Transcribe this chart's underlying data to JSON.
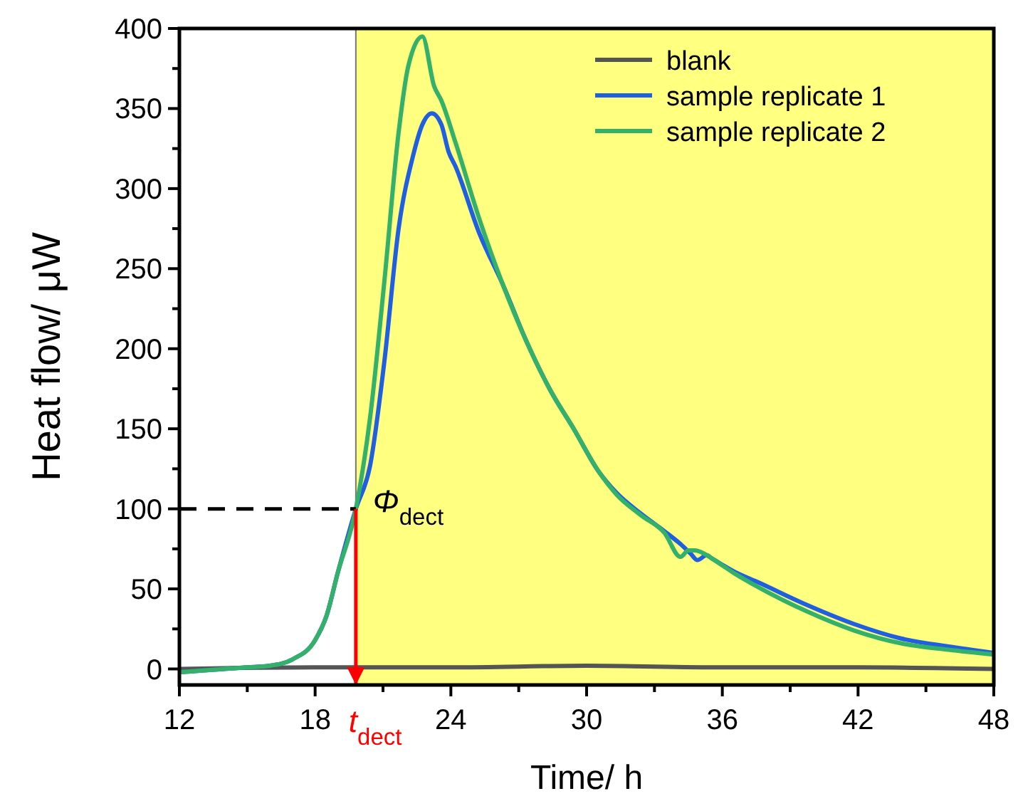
{
  "chart_data": {
    "type": "line",
    "xlabel": "Time/ h",
    "ylabel": "Heat flow/ μW",
    "xlim": [
      12,
      48
    ],
    "ylim": [
      -10,
      400
    ],
    "xticks": [
      12,
      {
        "value": 15,
        "label": null
      },
      18,
      {
        "value": 21,
        "label": null
      },
      24,
      {
        "value": 27,
        "label": null
      },
      30,
      {
        "value": 33,
        "label": null
      },
      36,
      {
        "value": 39,
        "label": null
      },
      42,
      {
        "value": 45,
        "label": null
      },
      48
    ],
    "yticks": [
      0,
      {
        "value": 25,
        "label": null
      },
      50,
      {
        "value": 75,
        "label": null
      },
      100,
      {
        "value": 125,
        "label": null
      },
      150,
      {
        "value": 175,
        "label": null
      },
      200,
      {
        "value": 225,
        "label": null
      },
      250,
      {
        "value": 275,
        "label": null
      },
      300,
      {
        "value": 325,
        "label": null
      },
      350,
      {
        "value": 375,
        "label": null
      },
      400
    ],
    "series": [
      {
        "name": "blank",
        "color": "#555555",
        "x": [
          12,
          18,
          24,
          30,
          36,
          42,
          48
        ],
        "values": [
          0,
          1,
          1,
          2,
          1,
          1,
          0
        ]
      },
      {
        "name": "sample replicate 1",
        "color": "#1f5fe0",
        "x": [
          12,
          13,
          14,
          15,
          16,
          17,
          18,
          18.5,
          19,
          19.8,
          20.43,
          21.06,
          21.69,
          22.32,
          22.74,
          23.16,
          23.58,
          23.9,
          24.2,
          25.26,
          26.3,
          27.36,
          28.4,
          29.43,
          30.5,
          31.32,
          32.4,
          33.44,
          34.15,
          34.6,
          34.9,
          35.3,
          35.54,
          36.5,
          37.6,
          39.73,
          41.83,
          43.9,
          46,
          48
        ],
        "values": [
          -2,
          -1,
          0,
          1,
          2,
          6,
          18,
          33,
          60,
          100,
          127,
          192,
          275,
          320,
          340,
          347,
          340,
          323,
          314,
          272,
          240,
          204,
          174,
          150,
          124,
          110,
          97,
          86,
          78,
          72,
          68,
          71,
          69,
          61,
          54,
          40,
          28,
          19,
          14,
          10
        ]
      },
      {
        "name": "sample replicate 2",
        "color": "#33b06a",
        "x": [
          12,
          13,
          14,
          15,
          16,
          17,
          18,
          18.5,
          19,
          19.8,
          20.43,
          21.06,
          21.69,
          22.11,
          22.74,
          23.26,
          23.58,
          24.2,
          25.26,
          26.3,
          27.36,
          28.4,
          29.43,
          30.5,
          31.32,
          32.4,
          33.44,
          34.15,
          34.5,
          34.78,
          35.2,
          35.54,
          36.5,
          37.6,
          39.73,
          41.83,
          43.9,
          46,
          48
        ],
        "values": [
          -2,
          -1,
          0,
          1,
          2,
          6,
          18,
          33,
          60,
          100,
          157,
          242,
          335,
          376,
          395,
          364,
          355,
          329,
          281,
          240,
          204,
          174,
          150,
          124,
          109,
          96,
          85,
          70,
          74,
          74,
          72,
          69,
          60,
          51,
          36,
          24,
          16,
          12,
          9
        ]
      }
    ],
    "bands": [
      {
        "axis": "x",
        "from": 19.8,
        "to": 48,
        "color": "#ffff80"
      }
    ],
    "ref_lines": [
      {
        "axis": "y",
        "value": 100,
        "label": "Φ$_{dect}$",
        "color": "#000000",
        "line_style": "dashed"
      },
      {
        "axis": "x",
        "value": 19.8,
        "label": "t$_{dect}$",
        "color": "#ff0000"
      }
    ],
    "legend": "top right",
    "grid": false
  }
}
